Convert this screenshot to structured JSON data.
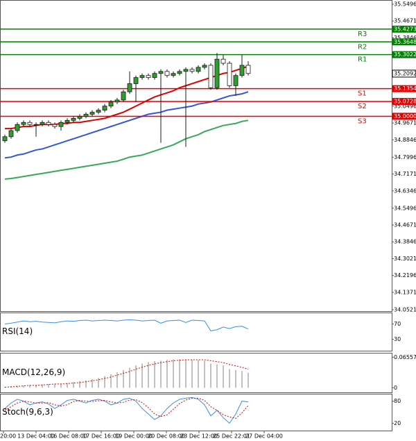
{
  "chart_data": {
    "type": "candlestick",
    "x_labels": [
      "20:00",
      "13 Dec 04:00",
      "16 Dec 08:00",
      "17 Dec 16:00",
      "19 Dec 00:00",
      "20 Dec 08:00",
      "23 Dec 12:00",
      "25 Dec 22:01",
      "27 Dec 04:00"
    ],
    "open": [
      34.88,
      34.9,
      34.93,
      34.96,
      34.97,
      34.96,
      34.96,
      34.97,
      34.96,
      34.95,
      34.97,
      34.98,
      34.99,
      35.0,
      35.01,
      35.02,
      35.03,
      35.05,
      35.07,
      35.08,
      35.12,
      35.16,
      35.19,
      35.2,
      35.19,
      35.21,
      35.22,
      35.2,
      35.21,
      35.22,
      35.23,
      35.22,
      35.24,
      35.25,
      35.14,
      35.28,
      35.26,
      35.15,
      35.2,
      35.25
    ],
    "high": [
      34.91,
      34.94,
      34.97,
      34.98,
      34.98,
      34.97,
      34.98,
      34.98,
      34.97,
      34.98,
      34.99,
      35.0,
      35.01,
      35.02,
      35.03,
      35.04,
      35.06,
      35.08,
      35.09,
      35.13,
      35.22,
      35.2,
      35.21,
      35.21,
      35.22,
      35.23,
      35.23,
      35.22,
      35.23,
      35.24,
      35.24,
      35.25,
      35.26,
      35.26,
      35.31,
      35.3,
      35.27,
      35.21,
      35.3,
      35.27
    ],
    "low": [
      34.87,
      34.89,
      34.92,
      34.95,
      34.95,
      34.9,
      34.95,
      34.95,
      34.94,
      34.93,
      34.96,
      34.97,
      34.98,
      34.99,
      35.0,
      35.01,
      35.02,
      35.04,
      35.06,
      35.07,
      35.11,
      35.07,
      35.18,
      35.18,
      35.18,
      34.87,
      35.19,
      35.19,
      35.2,
      34.85,
      35.21,
      35.21,
      35.23,
      35.13,
      35.13,
      35.25,
      35.14,
      35.1,
      35.19,
      35.2
    ],
    "close": [
      34.9,
      34.93,
      34.96,
      34.97,
      34.96,
      34.96,
      34.97,
      34.96,
      34.95,
      34.97,
      34.98,
      34.99,
      35.0,
      35.01,
      35.02,
      35.03,
      35.05,
      35.07,
      35.08,
      35.12,
      35.16,
      35.19,
      35.2,
      35.19,
      35.21,
      35.22,
      35.2,
      35.21,
      35.22,
      35.23,
      35.22,
      35.24,
      35.25,
      35.14,
      35.28,
      35.26,
      35.15,
      35.2,
      35.25,
      35.21
    ],
    "up_color": "#2e9e2e",
    "down_color": "#1a1a1a",
    "moving_averages": [
      {
        "color": "#e00000",
        "values": [
          34.94,
          34.94,
          34.945,
          34.95,
          34.95,
          34.955,
          34.96,
          34.96,
          34.96,
          34.965,
          34.965,
          34.97,
          34.97,
          34.975,
          34.98,
          34.985,
          34.99,
          35.0,
          35.01,
          35.02,
          35.035,
          35.05,
          35.065,
          35.08,
          35.095,
          35.105,
          35.115,
          35.125,
          35.14,
          35.15,
          35.16,
          35.17,
          35.18,
          35.19,
          35.2,
          35.21,
          35.215,
          35.225,
          35.235,
          35.245
        ]
      },
      {
        "color": "#3355dd",
        "values": [
          34.796,
          34.8,
          34.81,
          34.815,
          34.825,
          34.835,
          34.84,
          34.85,
          34.86,
          34.87,
          34.88,
          34.89,
          34.9,
          34.91,
          34.92,
          34.93,
          34.94,
          34.95,
          34.96,
          34.97,
          34.98,
          34.99,
          35.0,
          35.01,
          35.015,
          35.02,
          35.03,
          35.035,
          35.04,
          35.045,
          35.05,
          35.06,
          35.065,
          35.07,
          35.08,
          35.09,
          35.1,
          35.105,
          35.11,
          35.12
        ]
      },
      {
        "color": "#33aa55",
        "values": [
          34.692,
          34.695,
          34.7,
          34.705,
          34.71,
          34.715,
          34.72,
          34.725,
          34.73,
          34.735,
          34.74,
          34.745,
          34.75,
          34.755,
          34.76,
          34.765,
          34.77,
          34.775,
          34.78,
          34.79,
          34.8,
          34.805,
          34.81,
          34.82,
          34.83,
          34.84,
          34.85,
          34.86,
          34.875,
          34.89,
          34.9,
          34.91,
          34.925,
          34.935,
          34.945,
          34.955,
          34.96,
          34.965,
          34.975,
          34.98
        ]
      }
    ],
    "ylim": [
      34.045,
      35.57
    ],
    "yticks": [
      {
        "value": 35.5496,
        "label": "35.54960"
      },
      {
        "value": 35.4671,
        "label": "35.46710"
      },
      {
        "value": 35.3846,
        "label": "35.38460"
      },
      {
        "value": 35.0496,
        "label": "35.04960"
      },
      {
        "value": 34.9671,
        "label": "34.96710"
      },
      {
        "value": 34.8846,
        "label": "34.88460"
      },
      {
        "value": 34.7996,
        "label": "34.79960"
      },
      {
        "value": 34.7171,
        "label": "34.71710"
      },
      {
        "value": 34.6346,
        "label": "34.63460"
      },
      {
        "value": 34.5496,
        "label": "34.54960"
      },
      {
        "value": 34.4671,
        "label": "34.46710"
      },
      {
        "value": 34.3846,
        "label": "34.38460"
      },
      {
        "value": 34.3021,
        "label": "34.30210"
      },
      {
        "value": 34.2196,
        "label": "34.21960"
      },
      {
        "value": 34.1371,
        "label": "34.13710"
      },
      {
        "value": 34.0521,
        "label": "34.05210"
      }
    ],
    "levels": [
      {
        "name": "R3",
        "value": 35.4273,
        "value_label": "35.42730",
        "color": "#008000"
      },
      {
        "name": "R2",
        "value": 35.3648,
        "value_label": "35.36480",
        "color": "#008000"
      },
      {
        "name": "R1",
        "value": 35.3022,
        "value_label": "35.30220",
        "color": "#008000"
      },
      {
        "name": "S1",
        "value": 35.1354,
        "value_label": "35.13540",
        "color": "#e00000"
      },
      {
        "name": "S2",
        "value": 35.0728,
        "value_label": "35.07280",
        "color": "#e00000"
      },
      {
        "name": "S3",
        "value": 35.0,
        "value_label": "35.00000",
        "color": "#e00000"
      }
    ],
    "last_price": {
      "value": 35.20924,
      "label": "35.20924"
    },
    "indicators": [
      {
        "type": "line",
        "title": "RSI(14)",
        "ylim": [
          0,
          100
        ],
        "yticks": [
          70,
          30
        ],
        "series": [
          {
            "color": "#3a8ee6",
            "values": [
              70,
              72,
              75,
              78,
              76,
              77,
              75,
              74,
              73,
              76,
              78,
              77,
              79,
              80,
              78,
              79,
              80,
              79,
              78,
              80,
              81,
              80,
              78,
              79,
              80,
              72,
              78,
              79,
              80,
              74,
              80,
              79,
              78,
              52,
              55,
              62,
              58,
              63,
              64,
              57
            ]
          }
        ]
      },
      {
        "type": "histogram",
        "title": "MACD(12,26,9)",
        "ylim": [
          -0.01,
          0.075
        ],
        "yticks": [
          0.065577,
          0
        ],
        "series": [
          {
            "color": "#c0c0c0",
            "values": [
              0.002,
              0.003,
              0.004,
              0.005,
              0.006,
              0.006,
              0.007,
              0.008,
              0.008,
              0.009,
              0.01,
              0.012,
              0.014,
              0.016,
              0.018,
              0.021,
              0.025,
              0.029,
              0.033,
              0.038,
              0.043,
              0.048,
              0.052,
              0.055,
              0.057,
              0.058,
              0.06,
              0.061,
              0.061,
              0.061,
              0.06,
              0.059,
              0.058,
              0.052,
              0.05,
              0.048,
              0.04,
              0.038,
              0.036,
              0.032
            ]
          },
          {
            "color": "#e00000",
            "dashed": true,
            "values": [
              0.001,
              0.002,
              0.003,
              0.004,
              0.005,
              0.005,
              0.006,
              0.007,
              0.008,
              0.008,
              0.009,
              0.01,
              0.011,
              0.013,
              0.015,
              0.017,
              0.02,
              0.023,
              0.027,
              0.031,
              0.035,
              0.04,
              0.044,
              0.048,
              0.051,
              0.054,
              0.056,
              0.058,
              0.059,
              0.06,
              0.06,
              0.06,
              0.06,
              0.058,
              0.056,
              0.054,
              0.05,
              0.047,
              0.044,
              0.04
            ]
          }
        ]
      },
      {
        "type": "line",
        "title": "Stoch(9,6,3)",
        "ylim": [
          0,
          100
        ],
        "yticks": [
          80,
          20
        ],
        "series": [
          {
            "color": "#3a8ee6",
            "values": [
              60,
              75,
              85,
              80,
              70,
              75,
              78,
              72,
              60,
              70,
              82,
              85,
              80,
              75,
              82,
              85,
              80,
              70,
              75,
              85,
              88,
              80,
              60,
              45,
              30,
              40,
              60,
              75,
              85,
              88,
              90,
              85,
              70,
              40,
              55,
              35,
              20,
              45,
              80,
              78
            ]
          },
          {
            "color": "#e00000",
            "dashed": true,
            "values": [
              55,
              65,
              75,
              80,
              78,
              75,
              75,
              76,
              70,
              67,
              70,
              79,
              82,
              80,
              79,
              81,
              82,
              78,
              75,
              77,
              83,
              84,
              76,
              62,
              45,
              38,
              43,
              58,
              73,
              83,
              88,
              88,
              82,
              65,
              55,
              43,
              37,
              33,
              48,
              68
            ]
          }
        ]
      }
    ]
  }
}
